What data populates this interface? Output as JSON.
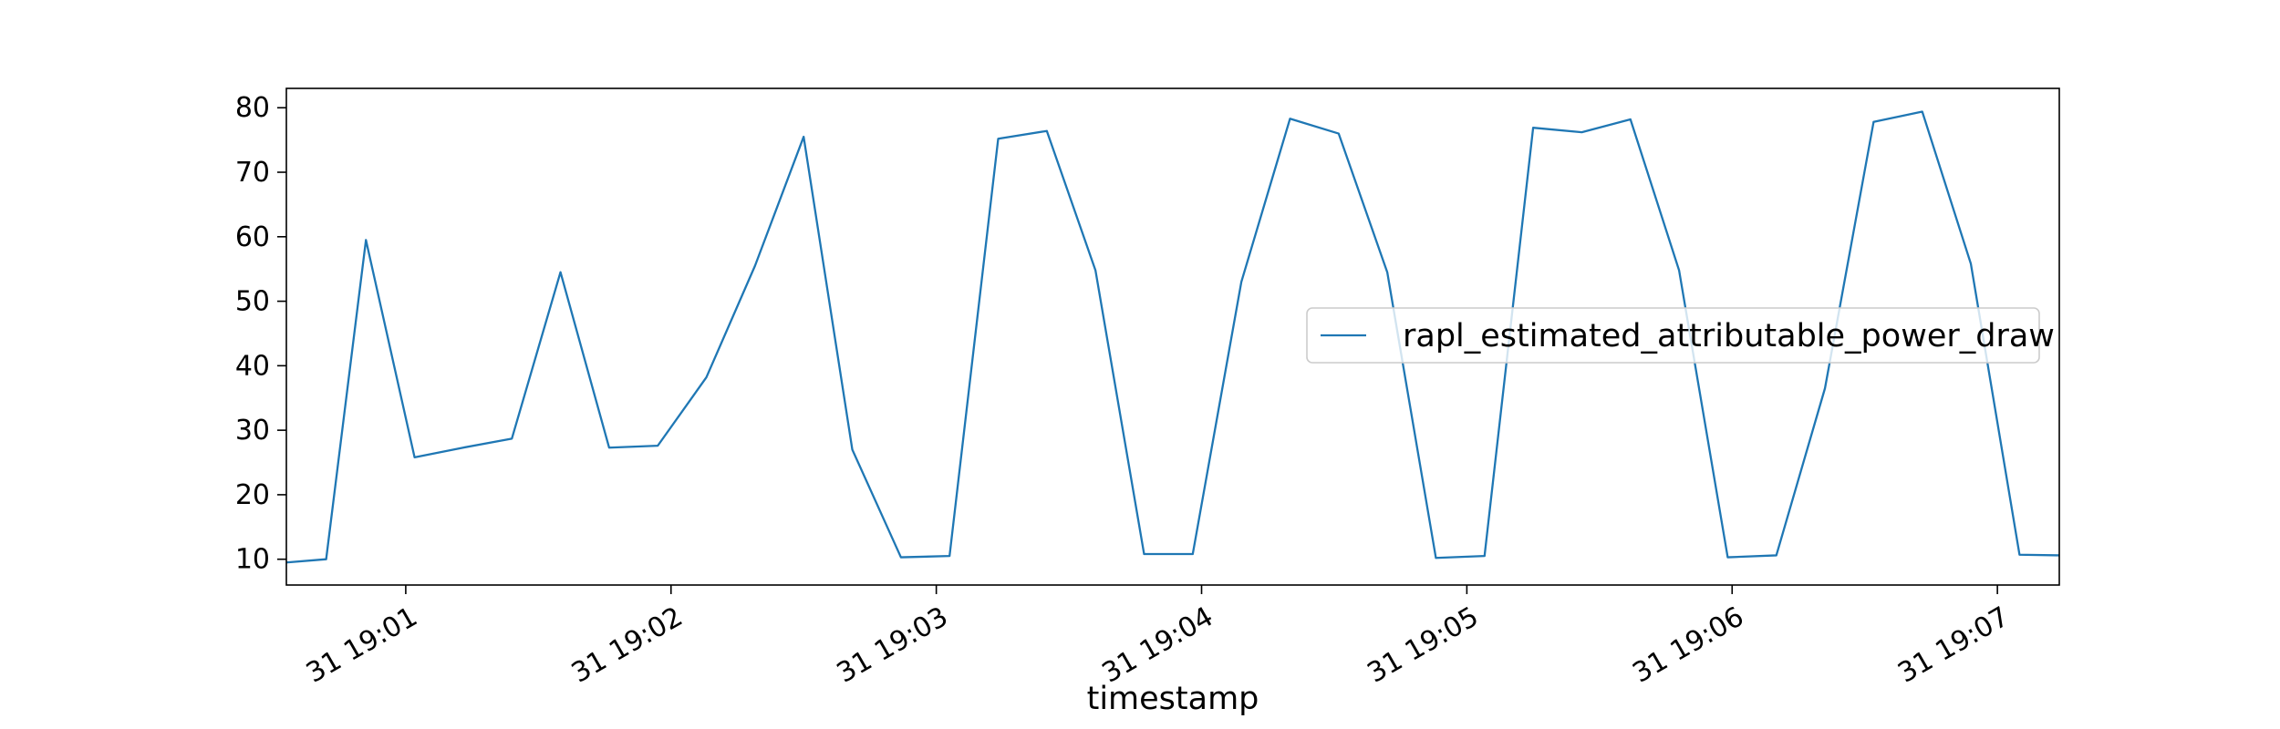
{
  "chart_data": {
    "type": "line",
    "title": "",
    "xlabel": "timestamp",
    "ylabel": "",
    "x_unit": "minutes",
    "xlim": [
      "19:00:33",
      "19:07:14"
    ],
    "ylim": [
      6.0,
      83.0
    ],
    "x_ticks": [
      {
        "t": "19:01:00",
        "label": "31 19:01"
      },
      {
        "t": "19:02:00",
        "label": "31 19:02"
      },
      {
        "t": "19:03:00",
        "label": "31 19:03"
      },
      {
        "t": "19:04:00",
        "label": "31 19:04"
      },
      {
        "t": "19:05:00",
        "label": "31 19:05"
      },
      {
        "t": "19:06:00",
        "label": "31 19:06"
      },
      {
        "t": "19:07:00",
        "label": "31 19:07"
      }
    ],
    "y_ticks": [
      10,
      20,
      30,
      40,
      50,
      60,
      70,
      80
    ],
    "legend": {
      "position": "center-right"
    },
    "grid": false,
    "series": [
      {
        "name": "rapl_estimated_attributable_power_draw",
        "color": "#1f77b4",
        "points": [
          {
            "t": "19:00:33",
            "y": 9.5
          },
          {
            "t": "19:00:42",
            "y": 10.0
          },
          {
            "t": "19:00:51",
            "y": 59.5
          },
          {
            "t": "19:01:02",
            "y": 25.8
          },
          {
            "t": "19:01:13",
            "y": 27.3
          },
          {
            "t": "19:01:24",
            "y": 28.7
          },
          {
            "t": "19:01:35",
            "y": 54.5
          },
          {
            "t": "19:01:46",
            "y": 27.3
          },
          {
            "t": "19:01:57",
            "y": 27.6
          },
          {
            "t": "19:02:08",
            "y": 38.2
          },
          {
            "t": "19:02:19",
            "y": 55.5
          },
          {
            "t": "19:02:30",
            "y": 75.5
          },
          {
            "t": "19:02:41",
            "y": 27.0
          },
          {
            "t": "19:02:52",
            "y": 10.3
          },
          {
            "t": "19:03:03",
            "y": 10.5
          },
          {
            "t": "19:03:14",
            "y": 75.2
          },
          {
            "t": "19:03:25",
            "y": 76.4
          },
          {
            "t": "19:03:36",
            "y": 54.8
          },
          {
            "t": "19:03:47",
            "y": 10.8
          },
          {
            "t": "19:03:58",
            "y": 10.8
          },
          {
            "t": "19:04:09",
            "y": 53.0
          },
          {
            "t": "19:04:20",
            "y": 78.3
          },
          {
            "t": "19:04:31",
            "y": 76.0
          },
          {
            "t": "19:04:42",
            "y": 54.5
          },
          {
            "t": "19:04:53",
            "y": 10.2
          },
          {
            "t": "19:05:04",
            "y": 10.5
          },
          {
            "t": "19:05:15",
            "y": 76.9
          },
          {
            "t": "19:05:26",
            "y": 76.2
          },
          {
            "t": "19:05:37",
            "y": 78.2
          },
          {
            "t": "19:05:48",
            "y": 54.8
          },
          {
            "t": "19:05:59",
            "y": 10.3
          },
          {
            "t": "19:06:10",
            "y": 10.6
          },
          {
            "t": "19:06:21",
            "y": 36.5
          },
          {
            "t": "19:06:32",
            "y": 77.8
          },
          {
            "t": "19:06:43",
            "y": 79.4
          },
          {
            "t": "19:06:54",
            "y": 55.8
          },
          {
            "t": "19:07:05",
            "y": 10.7
          },
          {
            "t": "19:07:14",
            "y": 10.6
          }
        ]
      }
    ]
  }
}
